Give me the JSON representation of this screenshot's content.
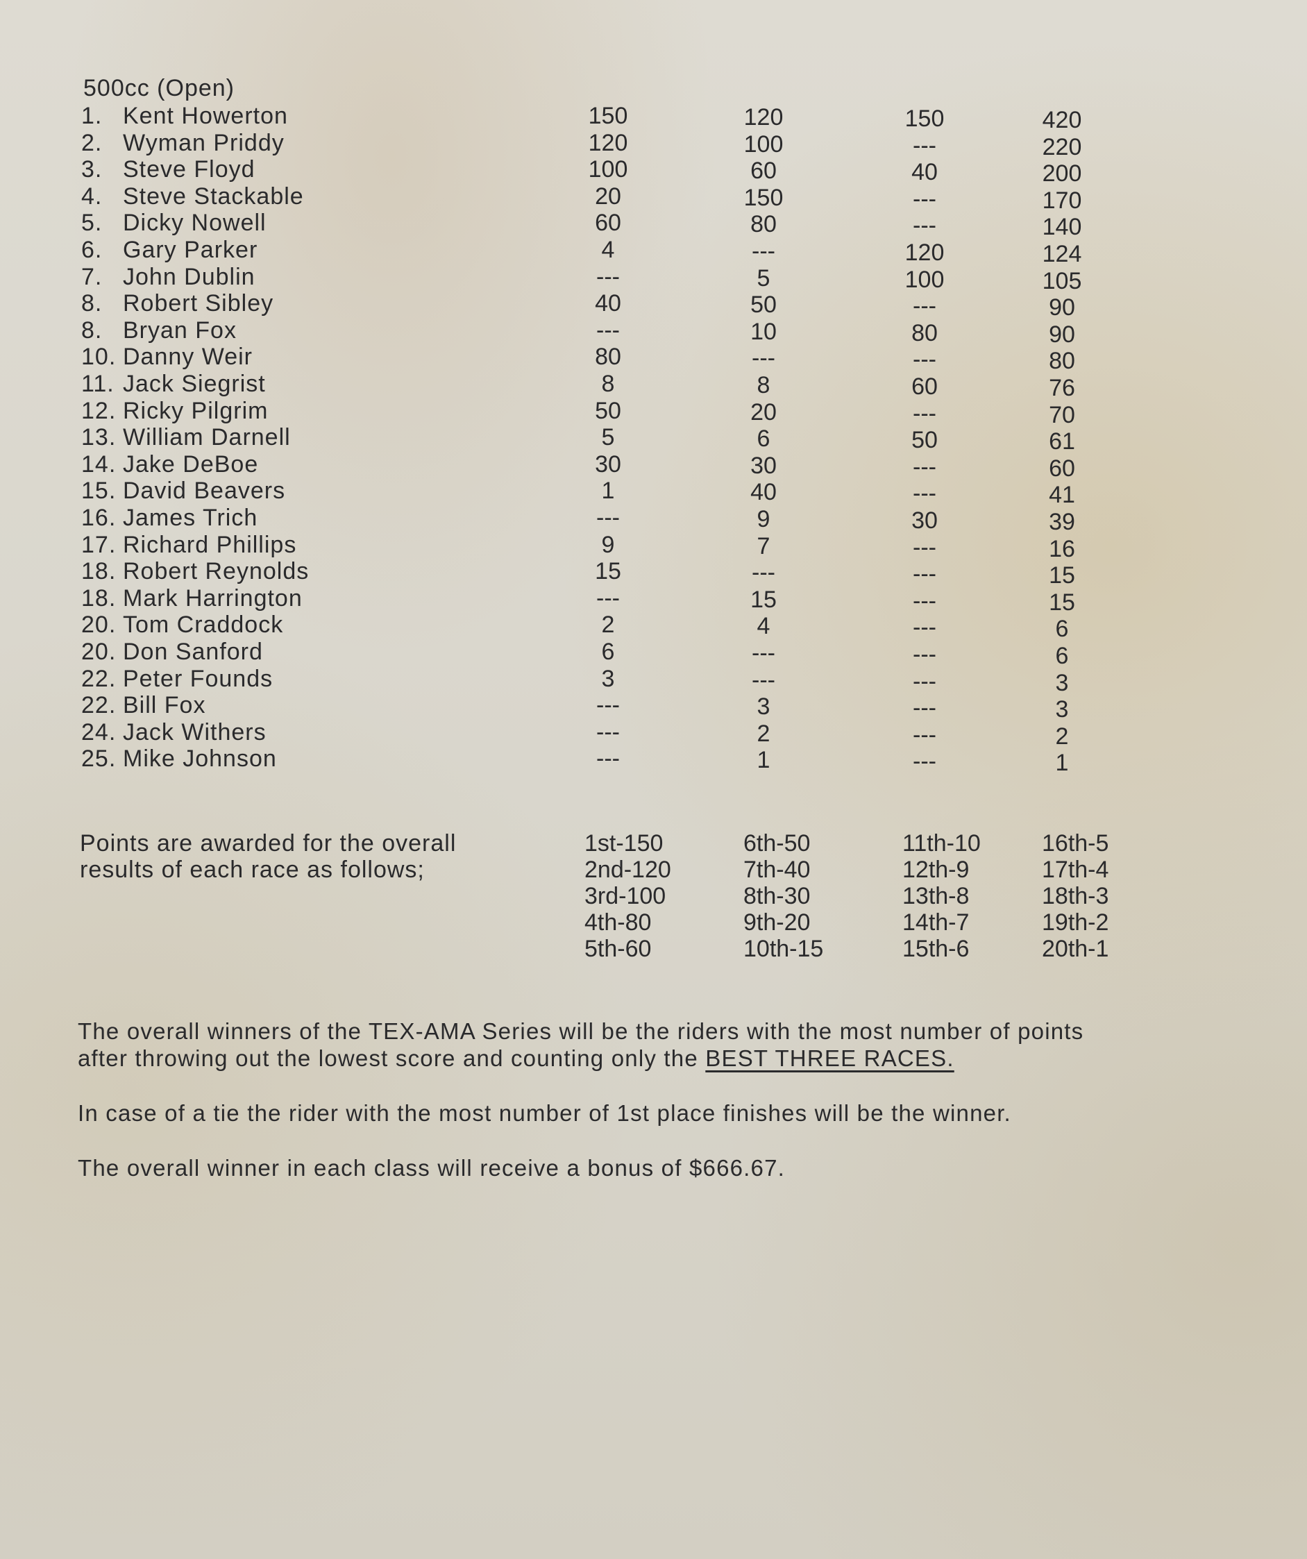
{
  "class_title": "500cc (Open)",
  "standings": [
    {
      "pos": "1.",
      "name": "Kent Howerton",
      "r1": "150",
      "r2": "120",
      "r3": "150",
      "total": "420"
    },
    {
      "pos": "2.",
      "name": "Wyman Priddy",
      "r1": "120",
      "r2": "100",
      "r3": "---",
      "total": "220"
    },
    {
      "pos": "3.",
      "name": "Steve Floyd",
      "r1": "100",
      "r2": "60",
      "r3": "40",
      "total": "200"
    },
    {
      "pos": "4.",
      "name": "Steve Stackable",
      "r1": "20",
      "r2": "150",
      "r3": "---",
      "total": "170"
    },
    {
      "pos": "5.",
      "name": "Dicky Nowell",
      "r1": "60",
      "r2": "80",
      "r3": "---",
      "total": "140"
    },
    {
      "pos": "6.",
      "name": "Gary Parker",
      "r1": "4",
      "r2": "---",
      "r3": "120",
      "total": "124"
    },
    {
      "pos": "7.",
      "name": "John Dublin",
      "r1": "---",
      "r2": "5",
      "r3": "100",
      "total": "105"
    },
    {
      "pos": "8.",
      "name": "Robert Sibley",
      "r1": "40",
      "r2": "50",
      "r3": "---",
      "total": "90"
    },
    {
      "pos": "8.",
      "name": "Bryan Fox",
      "r1": "---",
      "r2": "10",
      "r3": "80",
      "total": "90"
    },
    {
      "pos": "10.",
      "name": "Danny Weir",
      "r1": "80",
      "r2": "---",
      "r3": "---",
      "total": "80"
    },
    {
      "pos": "11.",
      "name": "Jack Siegrist",
      "r1": "8",
      "r2": "8",
      "r3": "60",
      "total": "76"
    },
    {
      "pos": "12.",
      "name": "Ricky Pilgrim",
      "r1": "50",
      "r2": "20",
      "r3": "---",
      "total": "70"
    },
    {
      "pos": "13.",
      "name": "William Darnell",
      "r1": "5",
      "r2": "6",
      "r3": "50",
      "total": "61"
    },
    {
      "pos": "14.",
      "name": "Jake DeBoe",
      "r1": "30",
      "r2": "30",
      "r3": "---",
      "total": "60"
    },
    {
      "pos": "15.",
      "name": "David Beavers",
      "r1": "1",
      "r2": "40",
      "r3": "---",
      "total": "41"
    },
    {
      "pos": "16.",
      "name": "James Trich",
      "r1": "---",
      "r2": "9",
      "r3": "30",
      "total": "39"
    },
    {
      "pos": "17.",
      "name": "Richard Phillips",
      "r1": "9",
      "r2": "7",
      "r3": "---",
      "total": "16"
    },
    {
      "pos": "18.",
      "name": "Robert Reynolds",
      "r1": "15",
      "r2": "---",
      "r3": "---",
      "total": "15"
    },
    {
      "pos": "18.",
      "name": "Mark Harrington",
      "r1": "---",
      "r2": "15",
      "r3": "---",
      "total": "15"
    },
    {
      "pos": "20.",
      "name": "Tom Craddock",
      "r1": "2",
      "r2": "4",
      "r3": "---",
      "total": "6"
    },
    {
      "pos": "20.",
      "name": "Don Sanford",
      "r1": "6",
      "r2": "---",
      "r3": "---",
      "total": "6"
    },
    {
      "pos": "22.",
      "name": "Peter Founds",
      "r1": "3",
      "r2": "---",
      "r3": "---",
      "total": "3"
    },
    {
      "pos": "22.",
      "name": "Bill Fox",
      "r1": "---",
      "r2": "3",
      "r3": "---",
      "total": "3"
    },
    {
      "pos": "24.",
      "name": "Jack Withers",
      "r1": "---",
      "r2": "2",
      "r3": "---",
      "total": "2"
    },
    {
      "pos": "25.",
      "name": "Mike Johnson",
      "r1": "---",
      "r2": "1",
      "r3": "---",
      "total": "1"
    }
  ],
  "points_intro": [
    "Points are awarded for the overall",
    "results of each race as follows;"
  ],
  "points_columns": [
    [
      "1st-150",
      "2nd-120",
      "3rd-100",
      "4th-80",
      "5th-60"
    ],
    [
      "6th-50",
      "7th-40",
      "8th-30",
      "9th-20",
      "10th-15"
    ],
    [
      "11th-10",
      "12th-9",
      "13th-8",
      "14th-7",
      "15th-6"
    ],
    [
      "16th-5",
      "17th-4",
      "18th-3",
      "19th-2",
      "20th-1"
    ]
  ],
  "rules": {
    "line1": "The overall winners of the TEX-AMA Series will be the riders with the most number of points",
    "line2_prefix": "after throwing out the lowest score and counting only the ",
    "line2_underlined": "BEST THREE RACES.",
    "tie": "In case of a tie the rider with the most number of 1st place finishes will be the winner.",
    "bonus": "The overall winner in each class will receive a bonus of $666.67."
  }
}
